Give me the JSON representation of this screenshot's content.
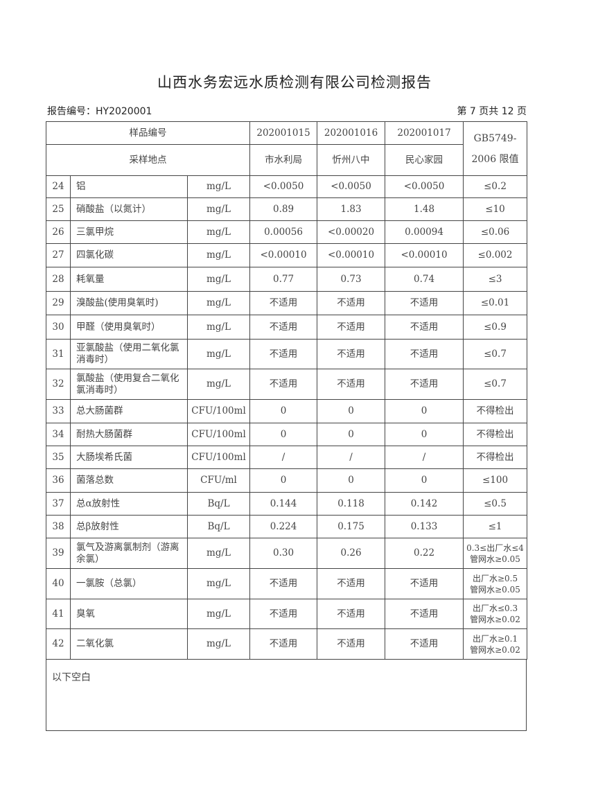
{
  "title": "山西水务宏远水质检测有限公司检测报告",
  "report_no": "报告编号：HY2020001",
  "page_info": "第 7 页共 12 页",
  "header": {
    "sample_no_label": "样品编号",
    "location_label": "采样地点",
    "samples": [
      "202001015",
      "202001016",
      "202001017"
    ],
    "locations": [
      "市水利局",
      "忻州八中",
      "民心家园"
    ],
    "limit_label": "GB5749-2006 限值"
  },
  "rows": [
    {
      "no": "24",
      "item": "铝",
      "unit": "mg/L",
      "v": [
        "<0.0050",
        "<0.0050",
        "<0.0050"
      ],
      "limit": "≤0.2"
    },
    {
      "no": "25",
      "item": "硝酸盐（以氮计）",
      "unit": "mg/L",
      "v": [
        "0.89",
        "1.83",
        "1.48"
      ],
      "limit": "≤10"
    },
    {
      "no": "26",
      "item": "三氯甲烷",
      "unit": "mg/L",
      "v": [
        "0.00056",
        "<0.00020",
        "0.00094"
      ],
      "limit": "≤0.06"
    },
    {
      "no": "27",
      "item": "四氯化碳",
      "unit": "mg/L",
      "v": [
        "<0.00010",
        "<0.00010",
        "<0.00010"
      ],
      "limit": "≤0.002"
    },
    {
      "no": "28",
      "item": "耗氧量",
      "unit": "mg/L",
      "v": [
        "0.77",
        "0.73",
        "0.74"
      ],
      "limit": "≤3"
    },
    {
      "no": "29",
      "item": "溴酸盐(使用臭氧时)",
      "unit": "mg/L",
      "v": [
        "不适用",
        "不适用",
        "不适用"
      ],
      "limit": "≤0.01"
    },
    {
      "no": "30",
      "item": "甲醛（使用臭氧时）",
      "unit": "mg/L",
      "v": [
        "不适用",
        "不适用",
        "不适用"
      ],
      "limit": "≤0.9"
    },
    {
      "no": "31",
      "item": "亚氯酸盐（使用二氧化氯消毒时）",
      "unit": "mg/L",
      "v": [
        "不适用",
        "不适用",
        "不适用"
      ],
      "limit": "≤0.7"
    },
    {
      "no": "32",
      "item": "氯酸盐（使用复合二氧化氯消毒时）",
      "unit": "mg/L",
      "v": [
        "不适用",
        "不适用",
        "不适用"
      ],
      "limit": "≤0.7"
    },
    {
      "no": "33",
      "item": "总大肠菌群",
      "unit": "CFU/100ml",
      "v": [
        "0",
        "0",
        "0"
      ],
      "limit": "不得检出"
    },
    {
      "no": "34",
      "item": "耐热大肠菌群",
      "unit": "CFU/100ml",
      "v": [
        "0",
        "0",
        "0"
      ],
      "limit": "不得检出"
    },
    {
      "no": "35",
      "item": "大肠埃希氏菌",
      "unit": "CFU/100ml",
      "v": [
        "/",
        "/",
        "/"
      ],
      "limit": "不得检出"
    },
    {
      "no": "36",
      "item": "菌落总数",
      "unit": "CFU/ml",
      "v": [
        "0",
        "0",
        "0"
      ],
      "limit": "≤100"
    },
    {
      "no": "37",
      "item": "总α放射性",
      "unit": "Bq/L",
      "v": [
        "0.144",
        "0.118",
        "0.142"
      ],
      "limit": "≤0.5"
    },
    {
      "no": "38",
      "item": "总β放射性",
      "unit": "Bq/L",
      "v": [
        "0.224",
        "0.175",
        "0.133"
      ],
      "limit": "≤1"
    },
    {
      "no": "39",
      "item": "氯气及游离氯制剂（游离余氯）",
      "unit": "mg/L",
      "v": [
        "0.30",
        "0.26",
        "0.22"
      ],
      "limit": "0.3≤出厂水≤4 管网水≥0.05"
    },
    {
      "no": "40",
      "item": "一氯胺（总氯）",
      "unit": "mg/L",
      "v": [
        "不适用",
        "不适用",
        "不适用"
      ],
      "limit": "出厂水≥0.5 管网水≥0.05"
    },
    {
      "no": "41",
      "item": "臭氧",
      "unit": "mg/L",
      "v": [
        "不适用",
        "不适用",
        "不适用"
      ],
      "limit": "出厂水≤0.3 管网水≥0.02"
    },
    {
      "no": "42",
      "item": "二氧化氯",
      "unit": "mg/L",
      "v": [
        "不适用",
        "不适用",
        "不适用"
      ],
      "limit": "出厂水≥0.1 管网水≥0.02"
    }
  ],
  "footer_note": "以下空白"
}
